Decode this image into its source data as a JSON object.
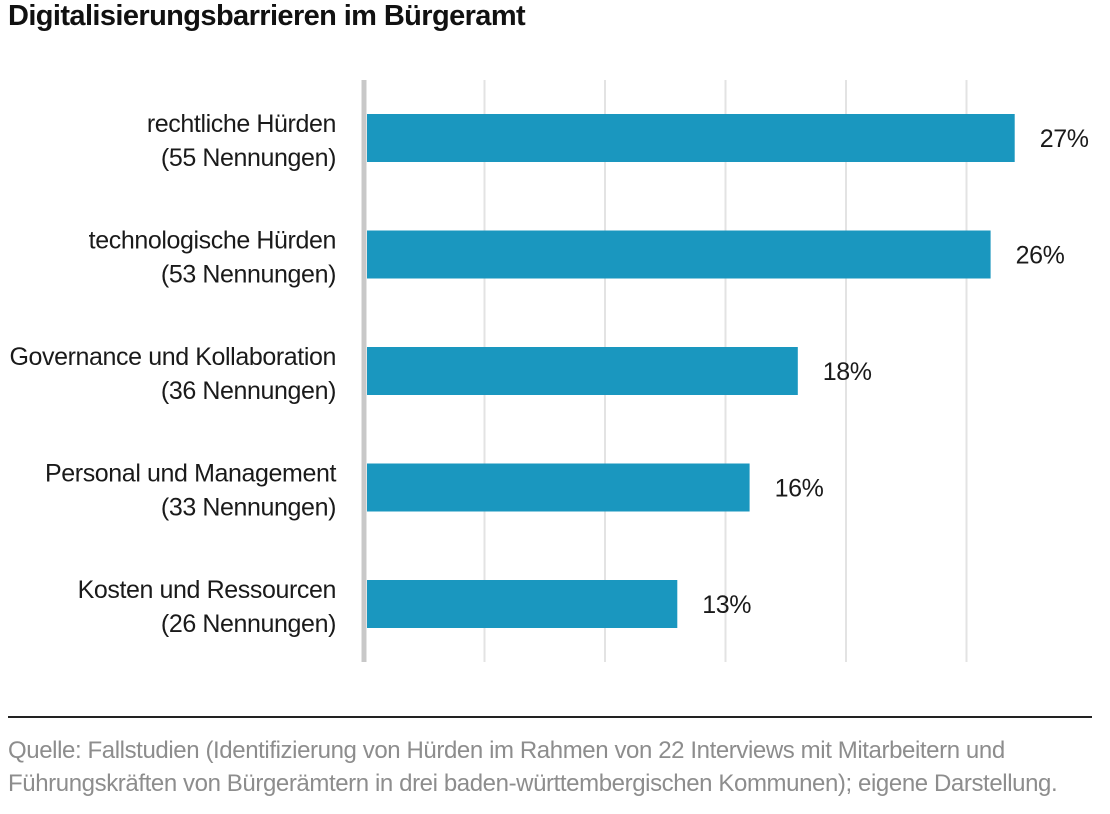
{
  "title": "Digitalisierungsbarrieren im Bürgeramt",
  "source": {
    "line1": "Quelle: Fallstudien (Identifizierung von Hürden im Rahmen von 22 Interviews mit Mitarbeitern und",
    "line2": "Führungskräften von Bürgerämtern in drei baden-württembergischen Kommunen); eigene Darstellung."
  },
  "colors": {
    "bar": "#1a97bf",
    "grid": "#e3e3e3",
    "axis": "#c8c8c8",
    "text": "#1a1a1a"
  },
  "chart_data": {
    "type": "bar",
    "orientation": "horizontal",
    "title": "Digitalisierungsbarrieren im Bürgeramt",
    "categories": [
      {
        "line1": "rechtliche Hürden",
        "line2": "(55 Nennungen)"
      },
      {
        "line1": "technologische Hürden",
        "line2": "(53 Nennungen)"
      },
      {
        "line1": "Governance und Kollaboration",
        "line2": "(36 Nennungen)"
      },
      {
        "line1": "Personal und Management",
        "line2": "(33 Nennungen)"
      },
      {
        "line1": "Kosten und Ressourcen",
        "line2": "(26 Nennungen)"
      }
    ],
    "values": [
      27,
      26,
      18,
      16,
      13
    ],
    "value_labels": [
      "27%",
      "26%",
      "18%",
      "16%",
      "13%"
    ],
    "unit": "%",
    "xlim": [
      0,
      30
    ],
    "x_gridlines": [
      5,
      10,
      15,
      20,
      25
    ],
    "grid": true,
    "legend": "none"
  }
}
